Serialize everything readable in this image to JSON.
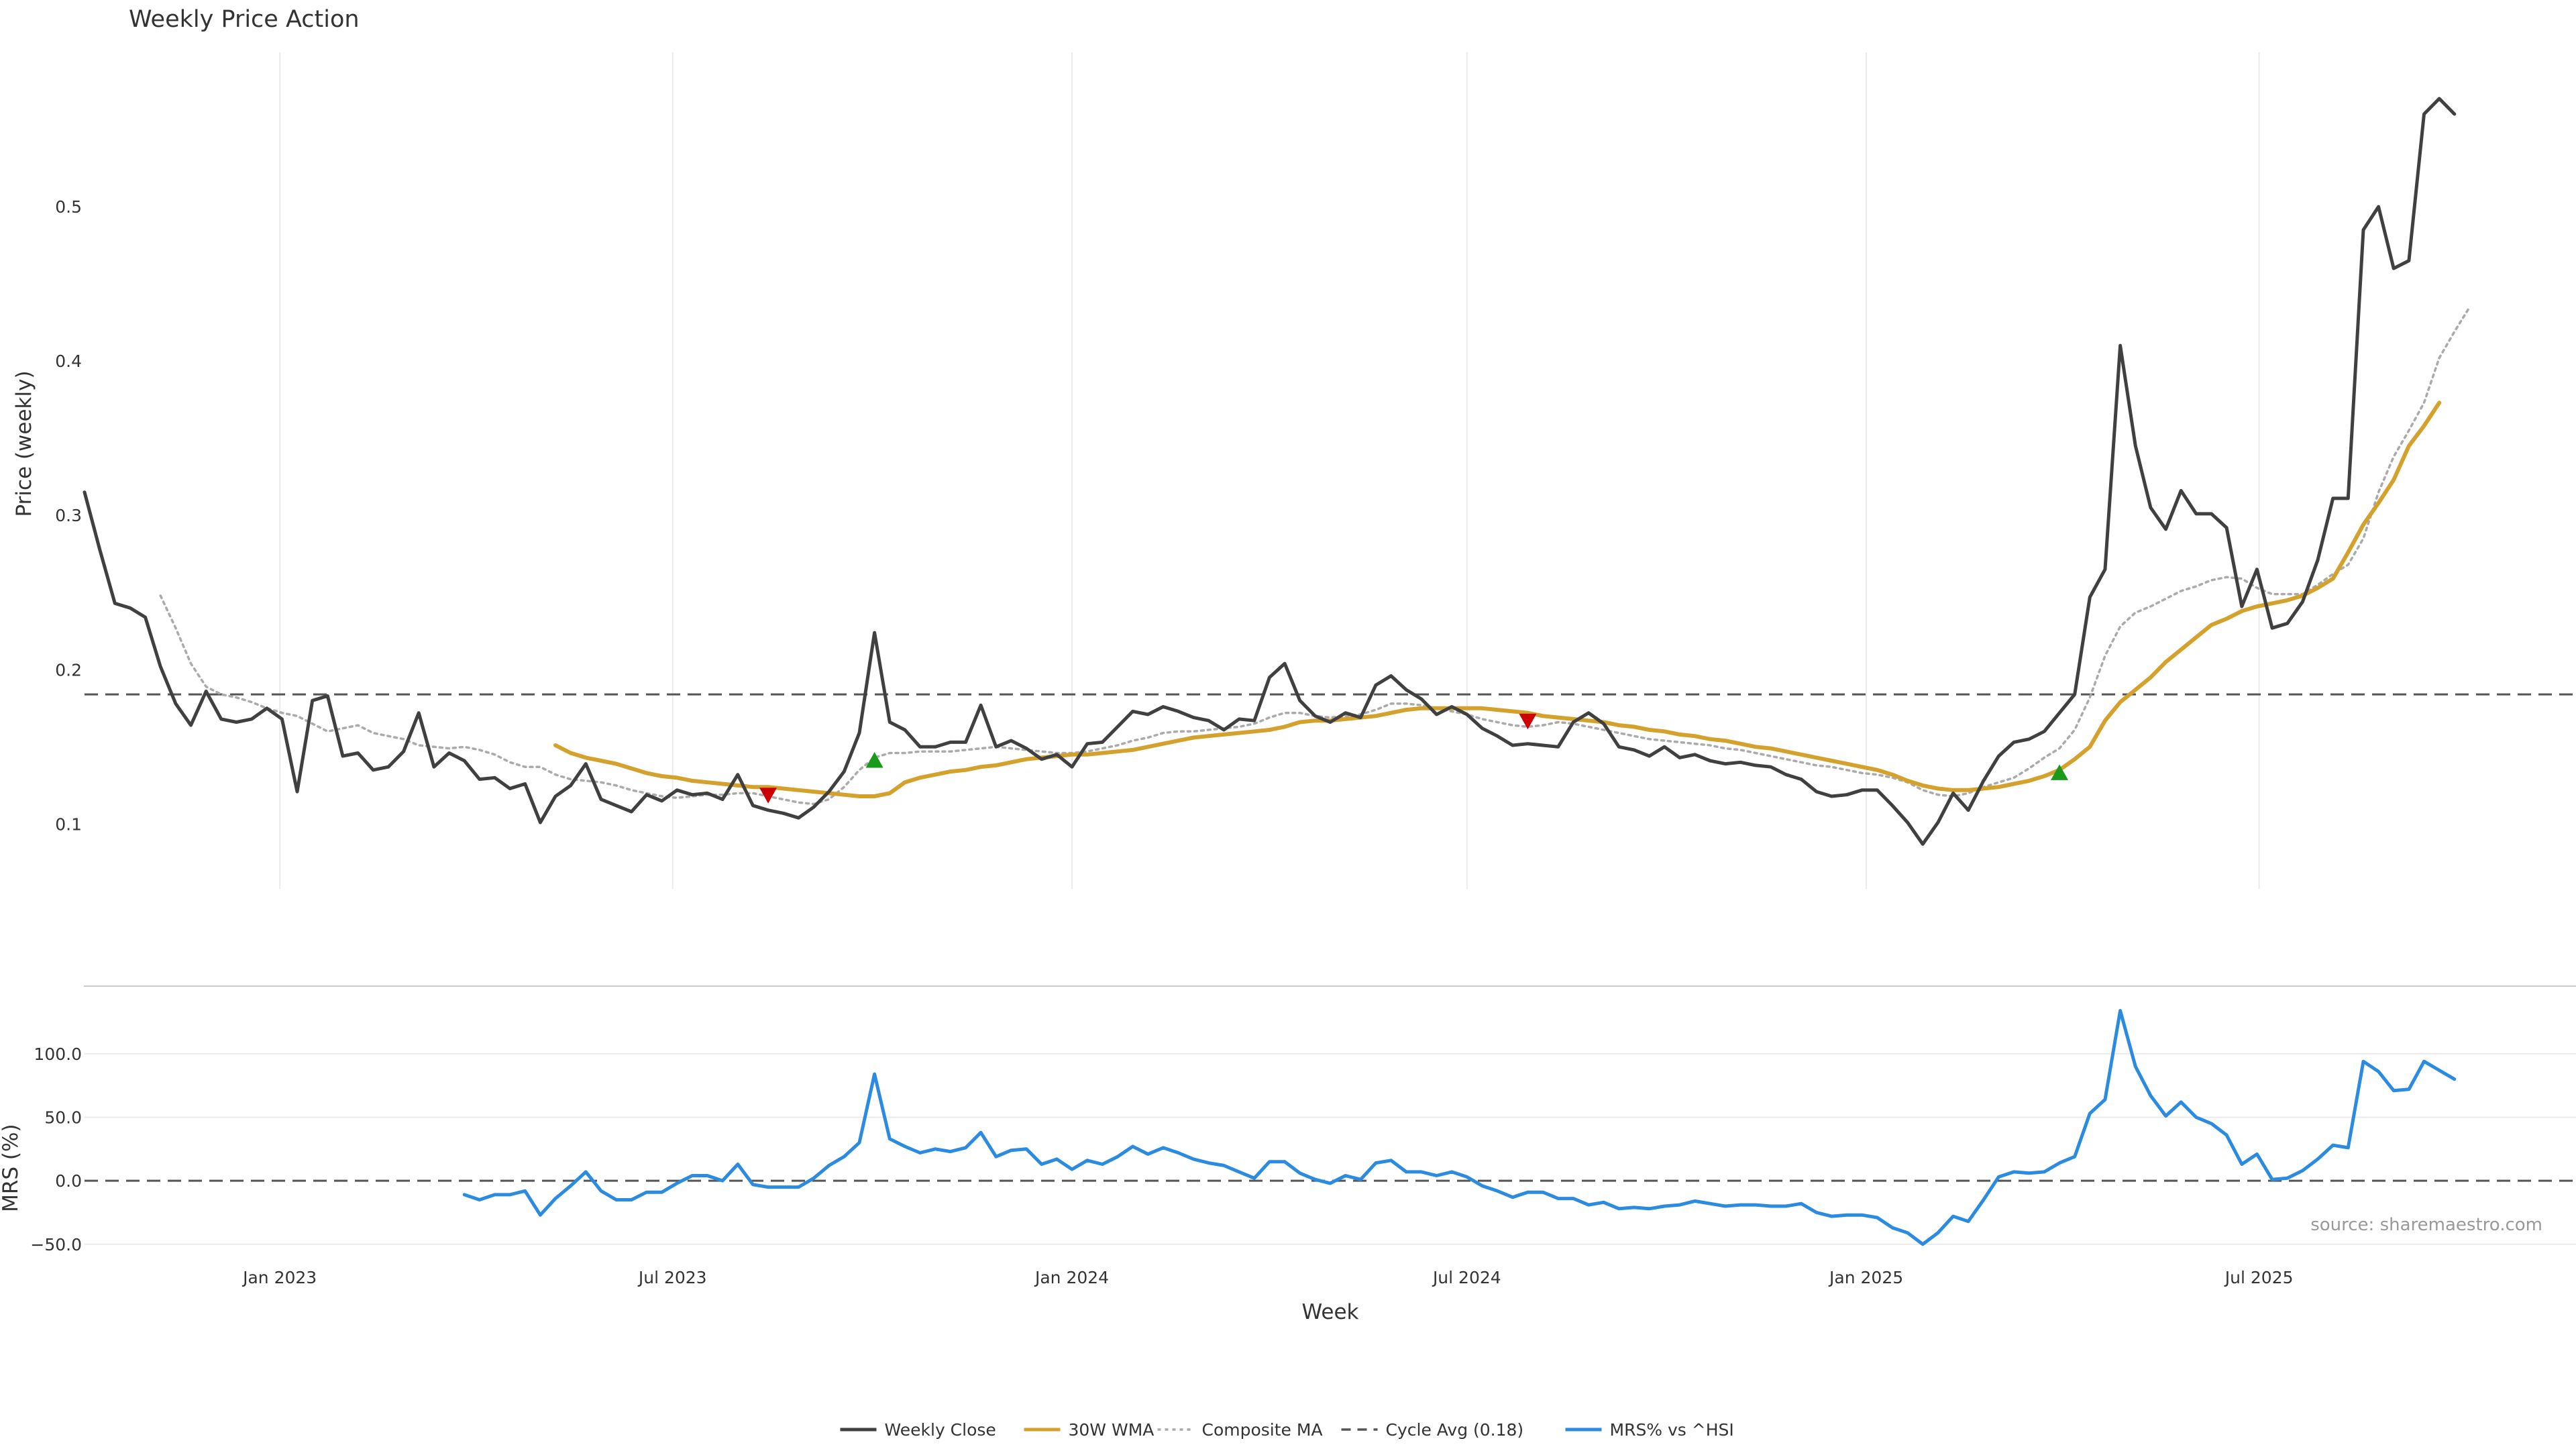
{
  "chart_data": [
    {
      "type": "line",
      "title": "Weekly Price Action",
      "xlabel": "",
      "ylabel": "Price (weekly)",
      "x_tick_labels": [
        "Jan 2023",
        "Jul 2023",
        "Jan 2024",
        "Jul 2024",
        "Jan 2025",
        "Jul 2025"
      ],
      "y_ticks": [
        0.1,
        0.2,
        0.3,
        0.4,
        0.5
      ],
      "ylim": [
        0.058,
        0.6
      ],
      "xlim": [
        "2022-10-03",
        "2025-11-24"
      ],
      "grid": "vertical",
      "series": [
        {
          "name": "Weekly Close",
          "color": "#404040",
          "style": "solid",
          "values": [
            0.315,
            0.278,
            0.243,
            0.24,
            0.234,
            0.202,
            0.178,
            0.164,
            0.186,
            0.168,
            0.166,
            0.168,
            0.175,
            0.168,
            0.121,
            0.18,
            0.183,
            0.144,
            0.146,
            0.135,
            0.137,
            0.147,
            0.172,
            0.137,
            0.146,
            0.141,
            0.129,
            0.13,
            0.123,
            0.126,
            0.101,
            0.118,
            0.125,
            0.139,
            0.116,
            0.112,
            0.108,
            0.119,
            0.115,
            0.122,
            0.119,
            0.12,
            0.116,
            0.132,
            0.112,
            0.109,
            0.107,
            0.104,
            0.111,
            0.121,
            0.134,
            0.159,
            0.224,
            0.166,
            0.161,
            0.15,
            0.15,
            0.153,
            0.153,
            0.177,
            0.15,
            0.154,
            0.149,
            0.142,
            0.145,
            0.137,
            0.152,
            0.153,
            0.163,
            0.173,
            0.171,
            0.176,
            0.173,
            0.169,
            0.167,
            0.161,
            0.168,
            0.167,
            0.195,
            0.204,
            0.18,
            0.17,
            0.166,
            0.172,
            0.169,
            0.19,
            0.196,
            0.187,
            0.181,
            0.171,
            0.176,
            0.171,
            0.162,
            0.157,
            0.151,
            0.152,
            0.151,
            0.15,
            0.166,
            0.172,
            0.165,
            0.15,
            0.148,
            0.144,
            0.15,
            0.143,
            0.145,
            0.141,
            0.139,
            0.14,
            0.138,
            0.137,
            0.132,
            0.129,
            0.121,
            0.118,
            0.119,
            0.122,
            0.122,
            0.112,
            0.101,
            0.087,
            0.101,
            0.12,
            0.109,
            0.128,
            0.144,
            0.153,
            0.155,
            0.16,
            0.172,
            0.184,
            0.247,
            0.265,
            0.41,
            0.345,
            0.305,
            0.291,
            0.316,
            0.301,
            0.301,
            0.292,
            0.241,
            0.265,
            0.227,
            0.23,
            0.244,
            0.271,
            0.311,
            0.311,
            0.485,
            0.5,
            0.46,
            0.465,
            0.56,
            0.57,
            0.56
          ]
        },
        {
          "name": "30W WMA",
          "color": "#D4A22C",
          "style": "solid",
          "start_index": 31,
          "values": [
            0.151,
            0.146,
            0.143,
            0.141,
            0.139,
            0.136,
            0.133,
            0.131,
            0.13,
            0.128,
            0.127,
            0.126,
            0.125,
            0.124,
            0.124,
            0.123,
            0.122,
            0.121,
            0.12,
            0.119,
            0.118,
            0.118,
            0.12,
            0.127,
            0.13,
            0.132,
            0.134,
            0.135,
            0.137,
            0.138,
            0.14,
            0.142,
            0.143,
            0.144,
            0.145,
            0.145,
            0.146,
            0.147,
            0.148,
            0.15,
            0.152,
            0.154,
            0.156,
            0.157,
            0.158,
            0.159,
            0.16,
            0.161,
            0.163,
            0.166,
            0.167,
            0.167,
            0.168,
            0.169,
            0.17,
            0.172,
            0.174,
            0.175,
            0.175,
            0.175,
            0.175,
            0.175,
            0.174,
            0.173,
            0.172,
            0.17,
            0.169,
            0.168,
            0.167,
            0.166,
            0.164,
            0.163,
            0.161,
            0.16,
            0.158,
            0.157,
            0.155,
            0.154,
            0.152,
            0.15,
            0.149,
            0.147,
            0.145,
            0.143,
            0.141,
            0.139,
            0.137,
            0.135,
            0.132,
            0.128,
            0.125,
            0.123,
            0.122,
            0.122,
            0.123,
            0.124,
            0.126,
            0.128,
            0.131,
            0.135,
            0.142,
            0.15,
            0.167,
            0.179,
            0.187,
            0.195,
            0.205,
            0.213,
            0.221,
            0.229,
            0.233,
            0.238,
            0.241,
            0.243,
            0.245,
            0.248,
            0.253,
            0.259,
            0.276,
            0.294,
            0.308,
            0.323,
            0.345,
            0.358,
            0.373
          ]
        },
        {
          "name": "Composite MA",
          "color": "#AAAAAA",
          "style": "dotted",
          "start_index": 5,
          "values": [
            0.248,
            0.227,
            0.204,
            0.189,
            0.184,
            0.182,
            0.179,
            0.175,
            0.172,
            0.17,
            0.165,
            0.16,
            0.162,
            0.164,
            0.159,
            0.157,
            0.155,
            0.151,
            0.15,
            0.149,
            0.15,
            0.148,
            0.145,
            0.14,
            0.137,
            0.137,
            0.132,
            0.129,
            0.128,
            0.127,
            0.125,
            0.122,
            0.12,
            0.118,
            0.117,
            0.118,
            0.119,
            0.119,
            0.12,
            0.12,
            0.118,
            0.116,
            0.114,
            0.113,
            0.116,
            0.124,
            0.135,
            0.143,
            0.146,
            0.146,
            0.147,
            0.147,
            0.147,
            0.148,
            0.149,
            0.15,
            0.149,
            0.148,
            0.147,
            0.146,
            0.146,
            0.147,
            0.149,
            0.151,
            0.154,
            0.156,
            0.159,
            0.16,
            0.16,
            0.161,
            0.162,
            0.163,
            0.165,
            0.169,
            0.172,
            0.172,
            0.17,
            0.169,
            0.17,
            0.171,
            0.174,
            0.178,
            0.178,
            0.177,
            0.175,
            0.173,
            0.171,
            0.168,
            0.166,
            0.164,
            0.163,
            0.164,
            0.166,
            0.165,
            0.163,
            0.161,
            0.159,
            0.157,
            0.155,
            0.154,
            0.153,
            0.152,
            0.151,
            0.149,
            0.148,
            0.146,
            0.144,
            0.142,
            0.14,
            0.138,
            0.137,
            0.135,
            0.133,
            0.132,
            0.13,
            0.127,
            0.122,
            0.119,
            0.118,
            0.12,
            0.124,
            0.127,
            0.13,
            0.136,
            0.143,
            0.149,
            0.161,
            0.182,
            0.209,
            0.228,
            0.237,
            0.241,
            0.246,
            0.251,
            0.254,
            0.258,
            0.26,
            0.259,
            0.253,
            0.249,
            0.249,
            0.249,
            0.255,
            0.262,
            0.268,
            0.285,
            0.315,
            0.338,
            0.355,
            0.373,
            0.402,
            0.419,
            0.435
          ]
        },
        {
          "name": "Cycle Avg (0.18)",
          "color": "#555555",
          "style": "dashed",
          "value": 0.184
        }
      ],
      "markers": [
        {
          "type": "sell",
          "shape": "triangle-down",
          "color": "#CC0000",
          "week_index": 45,
          "value": 0.119
        },
        {
          "type": "buy",
          "shape": "triangle-up",
          "color": "#1A9A1A",
          "week_index": 52,
          "value": 0.141
        },
        {
          "type": "sell",
          "shape": "triangle-down",
          "color": "#CC0000",
          "week_index": 95,
          "value": 0.167
        },
        {
          "type": "buy",
          "shape": "triangle-up",
          "color": "#1A9A1A",
          "week_index": 130,
          "value": 0.133
        }
      ]
    },
    {
      "type": "line",
      "title": "",
      "xlabel": "Week",
      "ylabel": "MRS (%)",
      "x_tick_labels": [
        "Jan 2023",
        "Jul 2023",
        "Jan 2024",
        "Jul 2024",
        "Jan 2025",
        "Jul 2025"
      ],
      "y_ticks": [
        -50.0,
        0.0,
        50.0,
        100.0
      ],
      "y_tick_labels": [
        "−50.0",
        "0.0",
        "50.0",
        "100.0"
      ],
      "ylim": [
        -57,
        148
      ],
      "grid": "horizontal",
      "series": [
        {
          "name": "MRS% vs ^HSI",
          "color": "#2A8BE0",
          "style": "solid",
          "start_index": 25,
          "values": [
            -11,
            -15,
            -11,
            -11,
            -8,
            -27,
            -14,
            -4,
            7,
            -8,
            -15,
            -15,
            -9,
            -9,
            -2,
            4,
            4,
            0,
            13,
            -3,
            -5,
            -5,
            -5,
            2,
            12,
            19,
            30,
            84,
            33,
            27,
            22,
            25,
            23,
            26,
            38,
            19,
            24,
            25,
            13,
            17,
            9,
            16,
            13,
            19,
            27,
            21,
            26,
            22,
            17,
            14,
            12,
            7,
            2,
            15,
            15,
            6,
            1,
            -2,
            4,
            1,
            14,
            16,
            7,
            7,
            4,
            7,
            3,
            -4,
            -8,
            -13,
            -9,
            -9,
            -14,
            -14,
            -19,
            -17,
            -22,
            -21,
            -22,
            -20,
            -19,
            -16,
            -18,
            -20,
            -19,
            -19,
            -20,
            -20,
            -18,
            -25,
            -28,
            -27,
            -27,
            -29,
            -37,
            -41,
            -50,
            -41,
            -28,
            -32,
            -15,
            3,
            7,
            6,
            7,
            14,
            19,
            53,
            64,
            134,
            90,
            67,
            51,
            62,
            50,
            45,
            36,
            13,
            21,
            1,
            2,
            8,
            17,
            28,
            26,
            94,
            86,
            71,
            72,
            94,
            87,
            80
          ]
        },
        {
          "name": "",
          "color": "#555555",
          "style": "dashed",
          "value": 0
        }
      ],
      "annotation": "source: sharemaestro.com"
    }
  ],
  "legend": {
    "placement": "bottom-center",
    "items": [
      {
        "label": "Weekly Close",
        "color": "#404040",
        "style": "solid"
      },
      {
        "label": "30W WMA",
        "color": "#D4A22C",
        "style": "solid"
      },
      {
        "label": "Composite MA",
        "color": "#AAAAAA",
        "style": "dotted"
      },
      {
        "label": "Cycle Avg (0.18)",
        "color": "#555555",
        "style": "dashed"
      },
      {
        "label": "MRS% vs ^HSI",
        "color": "#2A8BE0",
        "style": "solid"
      }
    ]
  }
}
